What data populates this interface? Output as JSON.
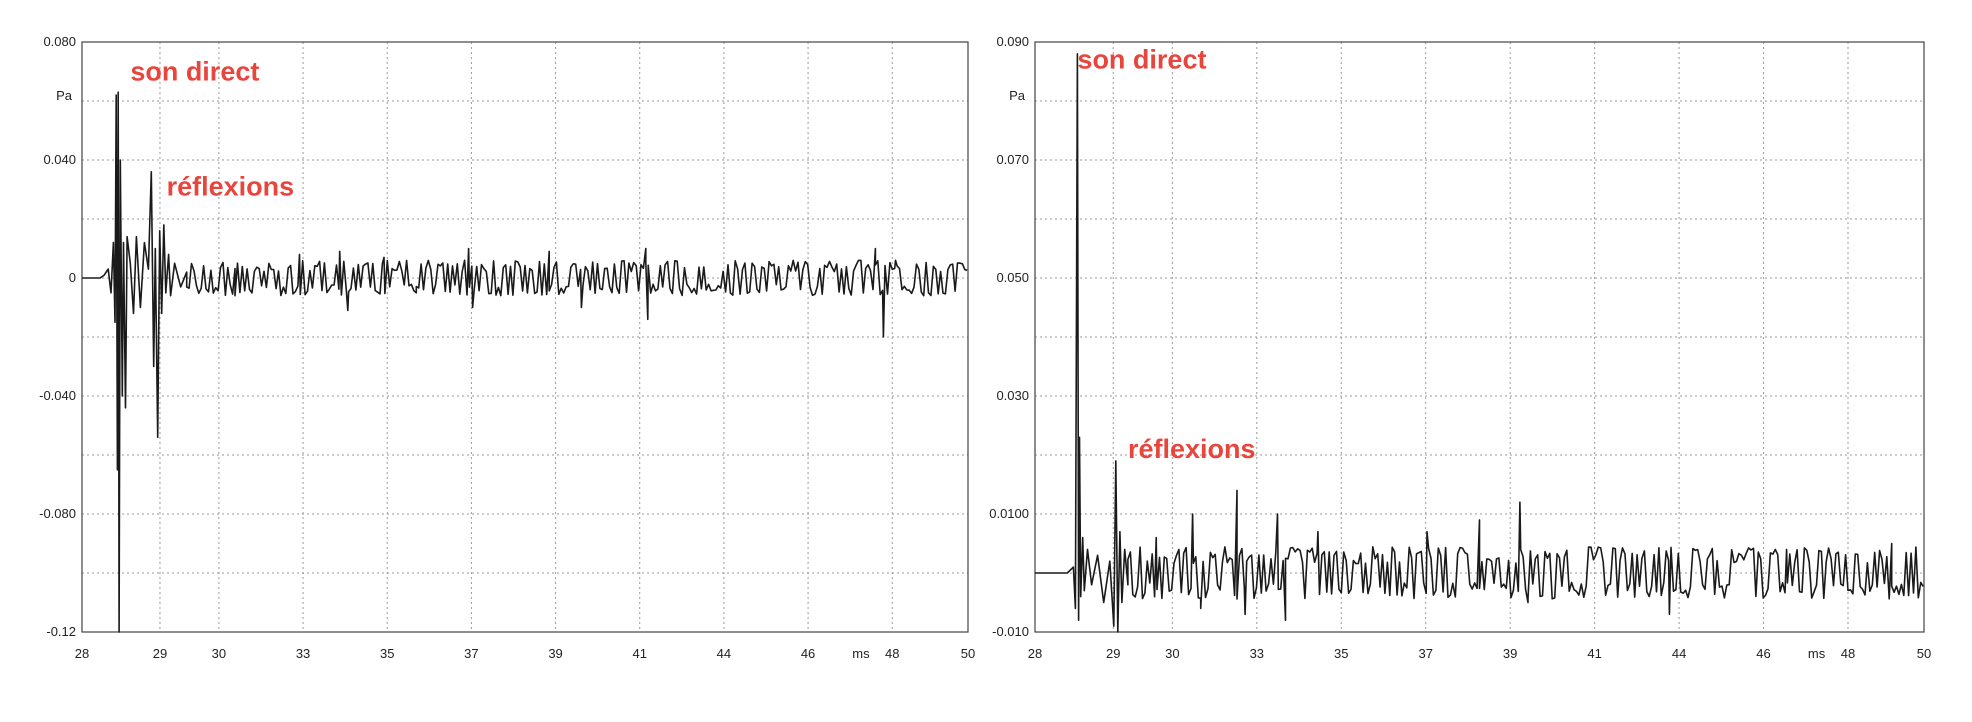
{
  "chart_data": [
    {
      "type": "line",
      "ylabel": "Pa",
      "xlabel": "ms",
      "xlim": [
        28,
        50
      ],
      "ylim": [
        -0.12,
        0.08
      ],
      "x_ticks": [
        "28",
        "29",
        "30",
        "33",
        "35",
        "37",
        "39",
        "41",
        "44",
        "46",
        "ms",
        "48",
        "50"
      ],
      "y_ticks": [
        {
          "value": 0.08,
          "label": "0.080"
        },
        {
          "value": 0.04,
          "label": "0.040"
        },
        {
          "value": 0,
          "label": "0"
        },
        {
          "value": -0.04,
          "label": "-0.040"
        },
        {
          "value": -0.08,
          "label": "-0.080"
        },
        {
          "value": -0.12,
          "label": "-0.12"
        }
      ],
      "grid": true,
      "annotations": [
        {
          "text": "son direct",
          "x": 29.2,
          "y": 0.067
        },
        {
          "text": "réflexions",
          "x": 30.1,
          "y": 0.028
        }
      ],
      "series": [
        {
          "color": "#1a1a1a",
          "x": [
            28,
            28.45,
            28.55,
            28.65,
            28.72,
            28.78,
            28.82,
            28.85,
            28.88,
            28.9,
            28.92,
            28.95,
            29.0,
            29.03,
            29.08,
            29.12,
            29.2,
            29.28,
            29.35,
            29.45,
            29.55,
            29.65,
            29.72,
            29.78,
            29.82,
            29.88,
            29.93,
            29.98,
            30.03,
            30.08,
            30.15,
            30.2,
            30.3,
            30.45,
            30.6
          ],
          "y": [
            0,
            0,
            0.001,
            0.003,
            -0.005,
            0.012,
            -0.015,
            0.062,
            -0.065,
            0.063,
            -0.12,
            0.04,
            -0.04,
            0.012,
            -0.044,
            0.014,
            0.005,
            -0.012,
            0.014,
            -0.01,
            0.012,
            0.003,
            0.036,
            -0.03,
            0.01,
            -0.054,
            0.016,
            -0.012,
            0.018,
            -0.005,
            0.008,
            -0.006,
            0.005,
            -0.003,
            0.002
          ],
          "noise": {
            "x_start": 30.6,
            "x_end": 50,
            "step": 0.06,
            "amplitude": 0.006,
            "seed": 11
          },
          "spikes": [
            {
              "x": 31.8,
              "y": -0.006
            },
            {
              "x": 33.4,
              "y": 0.008
            },
            {
              "x": 34.4,
              "y": 0.009
            },
            {
              "x": 34.6,
              "y": -0.011
            },
            {
              "x": 35.5,
              "y": 0.007
            },
            {
              "x": 36.3,
              "y": -0.005
            },
            {
              "x": 37.6,
              "y": 0.01
            },
            {
              "x": 37.7,
              "y": -0.01
            },
            {
              "x": 39.6,
              "y": 0.009
            },
            {
              "x": 40.4,
              "y": -0.01
            },
            {
              "x": 42.0,
              "y": 0.01
            },
            {
              "x": 42.05,
              "y": -0.014
            },
            {
              "x": 47.7,
              "y": 0.01
            },
            {
              "x": 47.9,
              "y": -0.02
            },
            {
              "x": 48.2,
              "y": 0.006
            }
          ]
        }
      ]
    },
    {
      "type": "line",
      "ylabel": "Pa",
      "xlabel": "ms",
      "xlim": [
        28,
        50
      ],
      "ylim": [
        -0.01,
        0.09
      ],
      "x_ticks": [
        "28",
        "29",
        "30",
        "33",
        "35",
        "37",
        "39",
        "41",
        "44",
        "46",
        "ms",
        "48",
        "50"
      ],
      "y_ticks": [
        {
          "value": 0.09,
          "label": "0.090"
        },
        {
          "value": 0.07,
          "label": "0.070"
        },
        {
          "value": 0.05,
          "label": "0.050"
        },
        {
          "value": 0.03,
          "label": "0.030"
        },
        {
          "value": 0.01,
          "label": "0.0100"
        },
        {
          "value": -0.01,
          "label": "-0.010"
        }
      ],
      "grid": true,
      "annotations": [
        {
          "text": "son direct",
          "x": 29.05,
          "y": 0.0855
        },
        {
          "text": "réflexions",
          "x": 30.3,
          "y": 0.0195
        }
      ],
      "series": [
        {
          "color": "#1a1a1a",
          "x": [
            28,
            28.8,
            28.95,
            29.0,
            29.05,
            29.08,
            29.1,
            29.13,
            29.18,
            29.22,
            29.3,
            29.4,
            29.55,
            29.7,
            29.85,
            29.95,
            30.0,
            30.05,
            30.1,
            30.15,
            30.22,
            30.3
          ],
          "y": [
            0,
            0,
            0.001,
            -0.006,
            0.088,
            -0.008,
            0.023,
            -0.004,
            0.006,
            -0.003,
            0.004,
            -0.002,
            0.003,
            -0.005,
            0.002,
            -0.009,
            0.019,
            -0.01,
            0.007,
            -0.005,
            0.004,
            -0.002
          ],
          "noise": {
            "x_start": 30.3,
            "x_end": 50,
            "step": 0.06,
            "amplitude": 0.0045,
            "seed": 29
          },
          "spikes": [
            {
              "x": 31.0,
              "y": 0.006
            },
            {
              "x": 31.9,
              "y": 0.01
            },
            {
              "x": 32.1,
              "y": -0.006
            },
            {
              "x": 33.0,
              "y": 0.014
            },
            {
              "x": 33.2,
              "y": -0.007
            },
            {
              "x": 34.0,
              "y": 0.01
            },
            {
              "x": 34.2,
              "y": -0.008
            },
            {
              "x": 35.0,
              "y": 0.007
            },
            {
              "x": 37.7,
              "y": 0.007
            },
            {
              "x": 39.0,
              "y": 0.009
            },
            {
              "x": 40.0,
              "y": 0.012
            },
            {
              "x": 40.2,
              "y": -0.005
            },
            {
              "x": 43.7,
              "y": -0.007
            },
            {
              "x": 46.6,
              "y": 0.004
            },
            {
              "x": 49.2,
              "y": 0.005
            }
          ]
        }
      ]
    }
  ]
}
